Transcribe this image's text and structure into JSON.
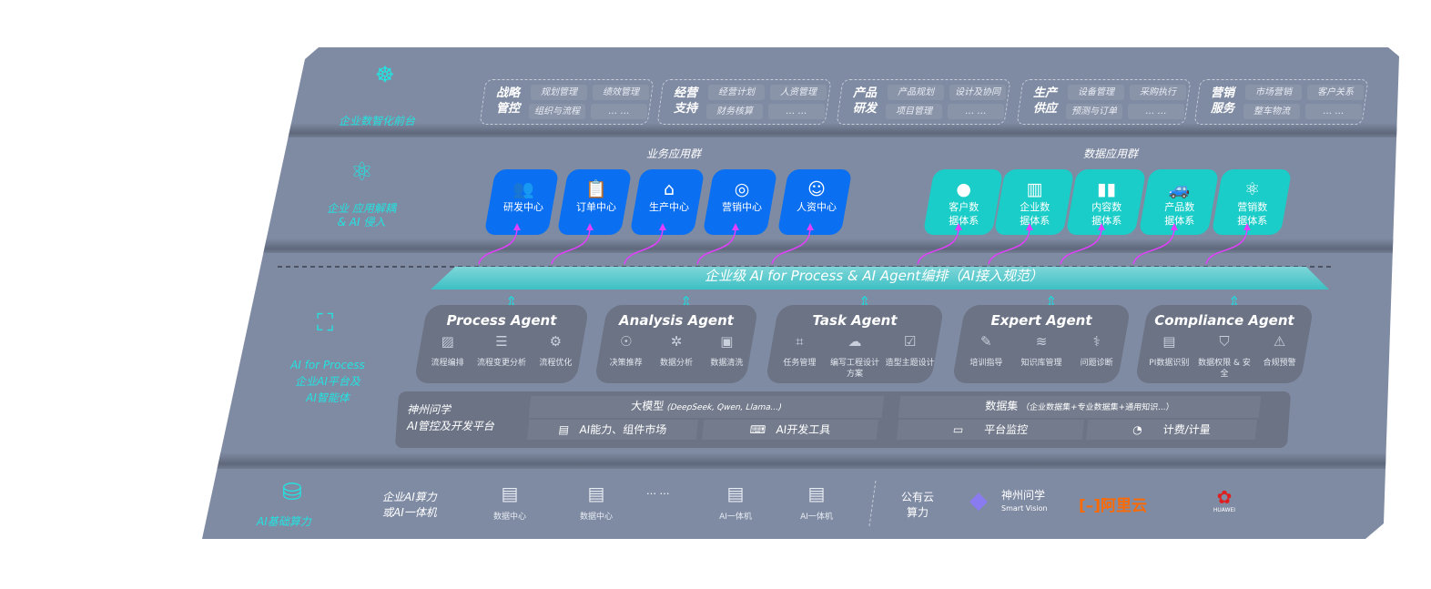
{
  "layers": {
    "front": {
      "label": "企业数智化前台",
      "icon": "brain-icon"
    },
    "apps": {
      "label_1": "企业 应用解耦",
      "label_2": "& AI 侵入",
      "icon": "molecule-icon"
    },
    "process": {
      "label_1": "AI for Process",
      "label_2": "企业AI平台及",
      "label_3": "AI智能体",
      "icon": "face-scan-icon"
    },
    "compute": {
      "label": "AI基础算力",
      "icon": "database-icon"
    }
  },
  "front_groups": [
    {
      "title": "战略管控",
      "items": [
        "规划管理",
        "绩效管理",
        "组织与流程",
        "… …"
      ]
    },
    {
      "title": "经营支持",
      "items": [
        "经营计划",
        "人资管理",
        "财务核算",
        "… …"
      ]
    },
    {
      "title": "产品研发",
      "items": [
        "产品规划",
        "设计及协同",
        "项目管理",
        "… …"
      ]
    },
    {
      "title": "生产供应",
      "items": [
        "设备管理",
        "采购执行",
        "预测与订单",
        "… …"
      ]
    },
    {
      "title": "营销服务",
      "items": [
        "市场营销",
        "客户关系",
        "整车物流",
        "… …"
      ]
    }
  ],
  "business_apps": {
    "title": "业务应用群",
    "items": [
      {
        "label": "研发中心",
        "icon": "users-icon"
      },
      {
        "label": "订单中心",
        "icon": "clipboard-icon"
      },
      {
        "label": "生产中心",
        "icon": "factory-icon"
      },
      {
        "label": "营销中心",
        "icon": "target-icon"
      },
      {
        "label": "人资中心",
        "icon": "person-icon"
      }
    ]
  },
  "data_apps": {
    "title": "数据应用群",
    "items": [
      {
        "label": "客户数据体系",
        "icon": "user-icon"
      },
      {
        "label": "企业数据体系",
        "icon": "building-icon"
      },
      {
        "label": "内容数据体系",
        "icon": "books-icon"
      },
      {
        "label": "产品数据体系",
        "icon": "car-icon"
      },
      {
        "label": "营销数据体系",
        "icon": "atom-icon"
      }
    ]
  },
  "orchestration": "企业级 AI for Process & AI Agent编排（AI接入规范）",
  "agents": [
    {
      "title": "Process Agent",
      "items": [
        {
          "label": "流程编排",
          "icon": "chart-window-icon"
        },
        {
          "label": "流程变更分析",
          "icon": "list-icon"
        },
        {
          "label": "流程优化",
          "icon": "optimize-icon"
        }
      ]
    },
    {
      "title": "Analysis Agent",
      "items": [
        {
          "label": "决策推荐",
          "icon": "head-icon"
        },
        {
          "label": "数据分析",
          "icon": "gear-icon"
        },
        {
          "label": "数据清洗",
          "icon": "clean-icon"
        }
      ]
    },
    {
      "title": "Task Agent",
      "items": [
        {
          "label": "任务管理",
          "icon": "grid-icon"
        },
        {
          "label": "编写工程设计方案",
          "icon": "cloud-icon"
        },
        {
          "label": "造型主题设计",
          "icon": "checklist-clock-icon"
        }
      ]
    },
    {
      "title": "Expert Agent",
      "items": [
        {
          "label": "培训指导",
          "icon": "pencil-icon"
        },
        {
          "label": "知识库管理",
          "icon": "layers-icon"
        },
        {
          "label": "问题诊断",
          "icon": "diagnose-icon"
        }
      ]
    },
    {
      "title": "Compliance Agent",
      "items": [
        {
          "label": "PI数据识别",
          "icon": "id-card-icon"
        },
        {
          "label": "数据权限 & 安全",
          "icon": "shield-icon"
        },
        {
          "label": "合规预警",
          "icon": "alert-icon"
        }
      ]
    }
  ],
  "platform": {
    "name_1": "神州问学",
    "name_2": "AI管控及开发平台",
    "llm": "大模型",
    "llm_note": "(DeepSeek, Qwen, Llama...)",
    "dataset": "数据集",
    "dataset_note": "（企业数据集+专业数据集+通用知识...）",
    "market": "AI能力、组件市场",
    "devtools": "AI开发工具",
    "monitor": "平台监控",
    "billing": "计费/计量"
  },
  "compute": {
    "private_1": "企业AI算力",
    "private_2": "或AI一体机",
    "servers": [
      "数据中心",
      "数据中心",
      "AI一体机",
      "AI一体机"
    ],
    "ellipsis": "… …",
    "public_1": "公有云",
    "public_2": "算力",
    "logos": {
      "shenzhou": "神州问学",
      "shenzhou_sub": "Smart Vision",
      "aliyun": "阿里云",
      "huawei": "HUAWEI"
    }
  },
  "colors": {
    "panel": "#7f8ba3",
    "business": "#0a6ff0",
    "data": "#1bcdc8",
    "accent": "#22e3e0",
    "arrow": "#e040fb",
    "aliyun": "#ff6a00",
    "huawei": "#e02020"
  }
}
